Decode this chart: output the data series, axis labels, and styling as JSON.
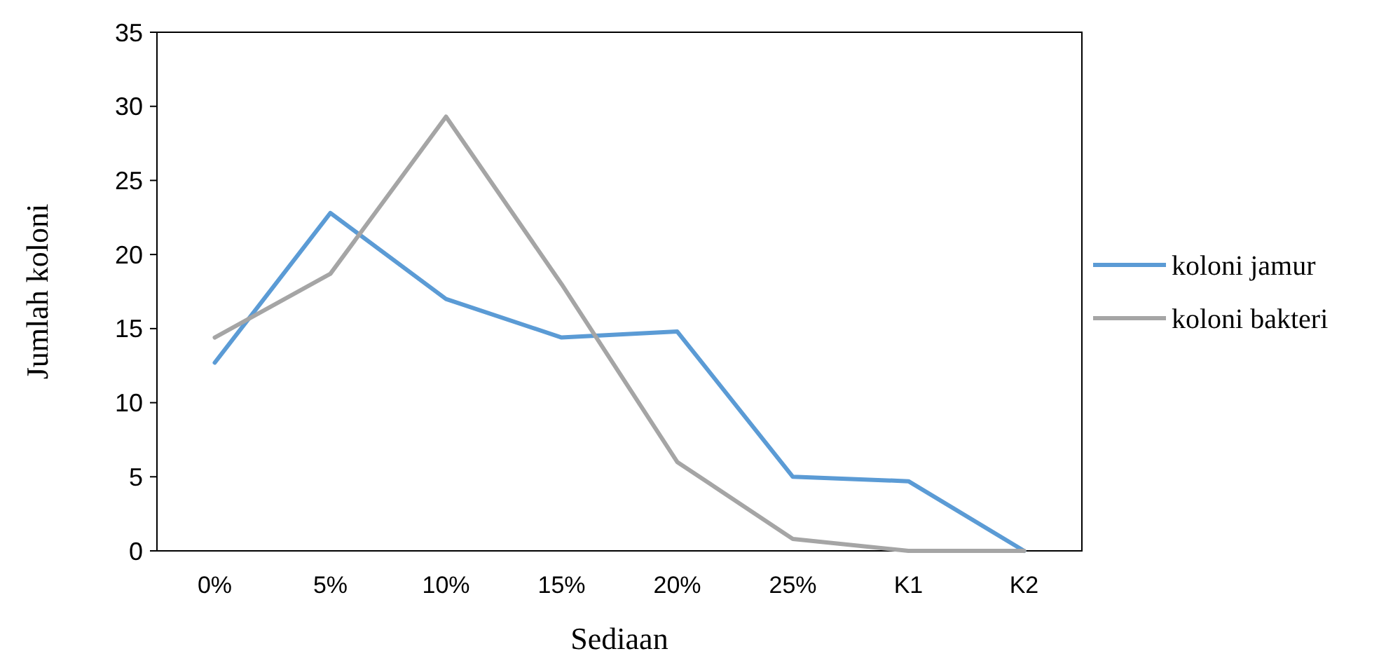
{
  "chart_data": {
    "type": "line",
    "xlabel": "Sediaan",
    "ylabel": "Jumlah koloni",
    "categories": [
      "0%",
      "5%",
      "10%",
      "15%",
      "20%",
      "25%",
      "K1",
      "K2"
    ],
    "series": [
      {
        "name": "koloni jamur",
        "color": "#5b9bd5",
        "values": [
          12.7,
          22.8,
          17.0,
          14.4,
          14.8,
          5.0,
          4.7,
          0
        ]
      },
      {
        "name": "koloni bakteri",
        "color": "#a5a5a5",
        "values": [
          14.4,
          18.7,
          29.3,
          18.0,
          6.0,
          0.8,
          0,
          0
        ]
      }
    ],
    "ylim": [
      0,
      35
    ],
    "yticks": [
      0,
      5,
      10,
      15,
      20,
      25,
      30,
      35
    ],
    "grid": false,
    "legend": "right",
    "marker": "none",
    "line_style": "solid"
  }
}
